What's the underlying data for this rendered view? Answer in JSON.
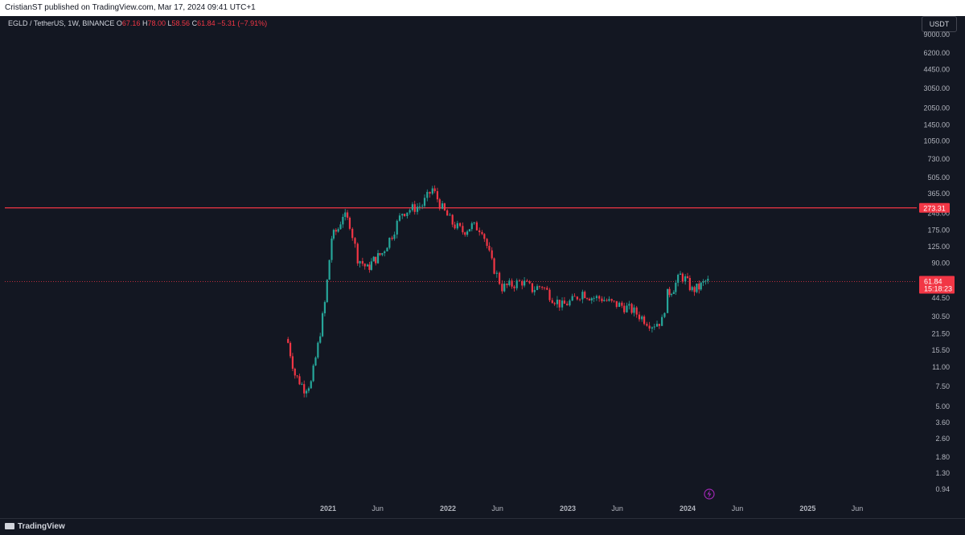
{
  "header": {
    "published": "CristianST published on TradingView.com, Mar 17, 2024 09:41 UTC+1"
  },
  "legend": {
    "symbol": "EGLD / TetherUS, 1W, BINANCE",
    "o_label": "O",
    "o": "67.16",
    "h_label": "H",
    "h": "78.00",
    "l_label": "L",
    "l": "58.56",
    "c_label": "C",
    "c": "61.84",
    "change": "−5.31 (−7.91%)"
  },
  "currency": "USDT",
  "footer": {
    "brand": "TradingView"
  },
  "colors": {
    "up": "#26a69a",
    "down": "#f23645",
    "hline": "#f23645",
    "background": "#131722",
    "axis_text": "#b2b5be"
  },
  "chart_data": {
    "type": "candlestick",
    "scale": "log",
    "y_ticks": [
      "9000.00",
      "6200.00",
      "4450.00",
      "3050.00",
      "2050.00",
      "1450.00",
      "1050.00",
      "730.00",
      "505.00",
      "365.00",
      "245.00",
      "175.00",
      "125.00",
      "90.00",
      "44.50",
      "30.50",
      "21.50",
      "15.50",
      "11.00",
      "7.50",
      "5.00",
      "3.60",
      "2.60",
      "1.80",
      "1.30",
      "0.94"
    ],
    "x_ticks": [
      {
        "label": "2021",
        "date": "2021-01-01",
        "bold": true
      },
      {
        "label": "Jun",
        "date": "2021-06-01",
        "bold": false
      },
      {
        "label": "2022",
        "date": "2022-01-01",
        "bold": true
      },
      {
        "label": "Jun",
        "date": "2022-06-01",
        "bold": false
      },
      {
        "label": "2023",
        "date": "2023-01-01",
        "bold": true
      },
      {
        "label": "Jun",
        "date": "2023-06-01",
        "bold": false
      },
      {
        "label": "2024",
        "date": "2024-01-01",
        "bold": true
      },
      {
        "label": "Jun",
        "date": "2024-06-01",
        "bold": false
      },
      {
        "label": "2025",
        "date": "2025-01-01",
        "bold": true
      },
      {
        "label": "Jun",
        "date": "2025-06-01",
        "bold": false
      }
    ],
    "horizontal_line": {
      "value": 273.31,
      "label": "273.31"
    },
    "last_price": {
      "value": 61.84,
      "label": "61.84",
      "countdown": "15:18:23"
    },
    "approx_close_path": [
      {
        "date": "2020-09-01",
        "close": 18
      },
      {
        "date": "2020-09-22",
        "close": 9.5
      },
      {
        "date": "2020-10-20",
        "close": 7.2
      },
      {
        "date": "2020-11-10",
        "close": 8.0
      },
      {
        "date": "2020-12-01",
        "close": 17
      },
      {
        "date": "2020-12-22",
        "close": 40
      },
      {
        "date": "2021-01-12",
        "close": 150
      },
      {
        "date": "2021-02-01",
        "close": 180
      },
      {
        "date": "2021-02-15",
        "close": 240
      },
      {
        "date": "2021-03-08",
        "close": 200
      },
      {
        "date": "2021-04-01",
        "close": 100
      },
      {
        "date": "2021-05-01",
        "close": 80
      },
      {
        "date": "2021-05-20",
        "close": 95
      },
      {
        "date": "2021-06-15",
        "close": 110
      },
      {
        "date": "2021-07-15",
        "close": 160
      },
      {
        "date": "2021-08-15",
        "close": 250
      },
      {
        "date": "2021-09-15",
        "close": 270
      },
      {
        "date": "2021-10-15",
        "close": 290
      },
      {
        "date": "2021-11-15",
        "close": 400
      },
      {
        "date": "2021-12-15",
        "close": 270
      },
      {
        "date": "2022-01-15",
        "close": 200
      },
      {
        "date": "2022-02-15",
        "close": 170
      },
      {
        "date": "2022-03-15",
        "close": 190
      },
      {
        "date": "2022-04-15",
        "close": 180
      },
      {
        "date": "2022-05-15",
        "close": 90
      },
      {
        "date": "2022-06-15",
        "close": 55
      },
      {
        "date": "2022-07-15",
        "close": 58
      },
      {
        "date": "2022-08-15",
        "close": 62
      },
      {
        "date": "2022-09-15",
        "close": 53
      },
      {
        "date": "2022-10-15",
        "close": 57
      },
      {
        "date": "2022-11-15",
        "close": 45
      },
      {
        "date": "2022-12-15",
        "close": 38
      },
      {
        "date": "2023-01-15",
        "close": 42
      },
      {
        "date": "2023-02-15",
        "close": 50
      },
      {
        "date": "2023-03-15",
        "close": 45
      },
      {
        "date": "2023-04-15",
        "close": 44
      },
      {
        "date": "2023-05-15",
        "close": 40
      },
      {
        "date": "2023-06-15",
        "close": 38
      },
      {
        "date": "2023-07-15",
        "close": 35
      },
      {
        "date": "2023-08-15",
        "close": 30
      },
      {
        "date": "2023-09-15",
        "close": 26
      },
      {
        "date": "2023-10-15",
        "close": 28
      },
      {
        "date": "2023-11-01",
        "close": 48
      },
      {
        "date": "2023-11-20",
        "close": 55
      },
      {
        "date": "2023-12-10",
        "close": 70
      },
      {
        "date": "2023-12-25",
        "close": 65
      },
      {
        "date": "2024-01-15",
        "close": 52
      },
      {
        "date": "2024-02-05",
        "close": 55
      },
      {
        "date": "2024-02-25",
        "close": 62
      },
      {
        "date": "2024-03-11",
        "close": 61.84
      }
    ]
  }
}
